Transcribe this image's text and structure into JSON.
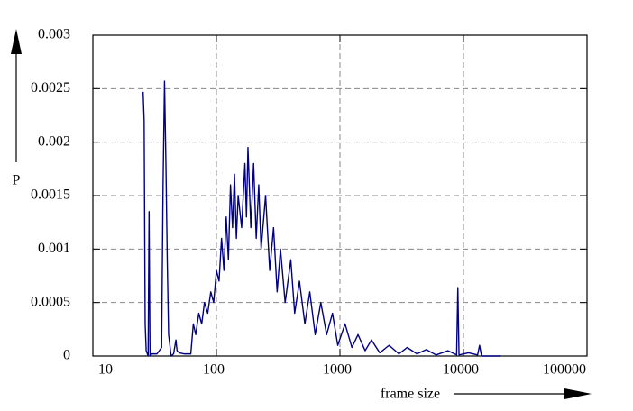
{
  "chart_data": {
    "type": "line",
    "x_label": "frame size",
    "y_label": "P",
    "log_x": true,
    "grid": true,
    "xlim": [
      10,
      100000
    ],
    "xticks": [
      10,
      100,
      1000,
      10000,
      100000
    ],
    "ylim": [
      0,
      0.003
    ],
    "yticks": [
      0,
      0.0005,
      0.001,
      0.0015,
      0.002,
      0.0025,
      0.003
    ],
    "series": [
      {
        "color": "#000080",
        "x": [
          25.5,
          26,
          26.5,
          27,
          28,
          28.5,
          29,
          30,
          33,
          36,
          37,
          38,
          39,
          40,
          41,
          43,
          45,
          47,
          48,
          50,
          55,
          62,
          65,
          68,
          72,
          76,
          80,
          85,
          90,
          95,
          100,
          105,
          110,
          115,
          120,
          125,
          130,
          135,
          140,
          145,
          150,
          160,
          170,
          175,
          180,
          190,
          200,
          210,
          220,
          230,
          250,
          270,
          290,
          310,
          330,
          360,
          400,
          430,
          470,
          520,
          570,
          630,
          700,
          780,
          870,
          960,
          1100,
          1250,
          1400,
          1600,
          1800,
          2100,
          2500,
          3000,
          3500,
          4200,
          5000,
          6000,
          7500,
          8800,
          9000,
          9200,
          11000,
          13000,
          13500,
          14000,
          20000
        ],
        "values": [
          0.00247,
          0.0022,
          0.0003,
          5e-05,
          0.0,
          0.00135,
          0.0,
          2e-05,
          2e-05,
          8e-05,
          0.0016,
          0.00257,
          0.0018,
          0.0009,
          0.0002,
          0.0,
          2e-05,
          0.00015,
          5e-05,
          3e-05,
          2e-05,
          2e-05,
          0.0003,
          0.0002,
          0.0004,
          0.0003,
          0.0005,
          0.0004,
          0.0006,
          0.0005,
          0.0008,
          0.0007,
          0.0011,
          0.0008,
          0.0013,
          0.0009,
          0.0016,
          0.0012,
          0.0017,
          0.0011,
          0.0015,
          0.0012,
          0.0018,
          0.0013,
          0.00195,
          0.0012,
          0.0018,
          0.0011,
          0.0016,
          0.001,
          0.0015,
          0.0008,
          0.0012,
          0.0006,
          0.001,
          0.0005,
          0.0009,
          0.0004,
          0.0007,
          0.0003,
          0.0006,
          0.0002,
          0.0005,
          0.0002,
          0.0004,
          0.0001,
          0.0003,
          8e-05,
          0.0002,
          5e-05,
          0.00015,
          3e-05,
          0.0001,
          2e-05,
          8e-05,
          2e-05,
          6e-05,
          1e-05,
          5e-05,
          1e-05,
          0.00064,
          1e-05,
          3e-05,
          1e-05,
          0.0001,
          0.0,
          0.0
        ]
      }
    ]
  }
}
